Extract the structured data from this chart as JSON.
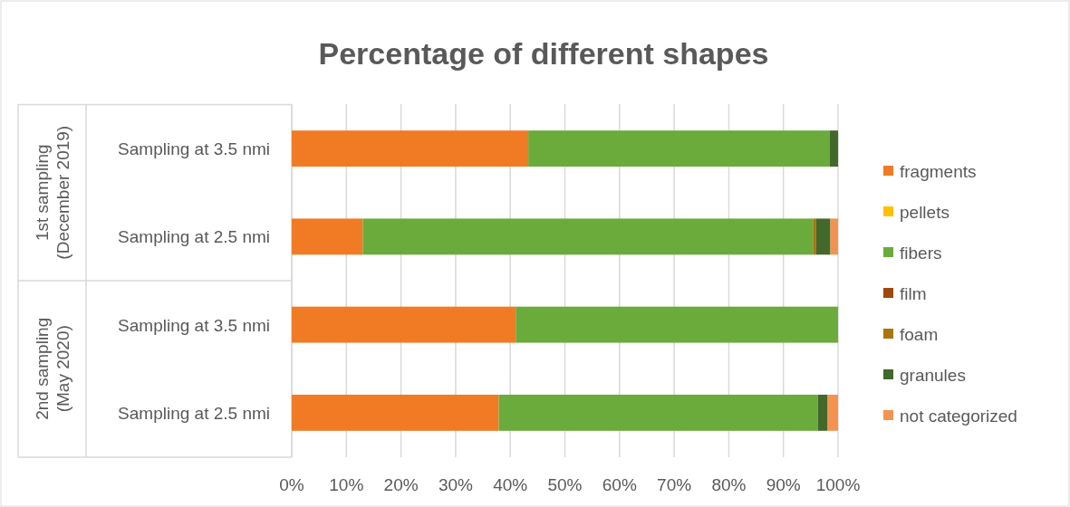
{
  "chart_data": {
    "type": "bar",
    "orientation": "horizontal",
    "stacked": true,
    "title": "Percentage of different shapes",
    "categories": [
      "Sampling at 3.5 nmi",
      "Sampling at 2.5 nmi",
      "Sampling at 3.5 nmi",
      "Sampling at 2.5 nmi"
    ],
    "annotations": [
      "1st sampling (December 2019)",
      "2nd sampling (May 2020)"
    ],
    "series": [
      {
        "name": "fragments",
        "color": "#f07b24",
        "values": [
          43.3,
          13.0,
          41.0,
          37.9
        ]
      },
      {
        "name": "pellets",
        "color": "#ffc000",
        "values": [
          0,
          0,
          0,
          0
        ]
      },
      {
        "name": "fibers",
        "color": "#6aab3c",
        "values": [
          55.2,
          82.4,
          59.0,
          58.4
        ]
      },
      {
        "name": "film",
        "color": "#9e480e",
        "values": [
          0,
          0,
          0,
          0
        ]
      },
      {
        "name": "foam",
        "color": "#a8760c",
        "values": [
          0,
          0.6,
          0,
          0
        ]
      },
      {
        "name": "granules",
        "color": "#43682b",
        "values": [
          1.5,
          2.6,
          0,
          1.8
        ]
      },
      {
        "name": "not categorized",
        "color": "#f4934f",
        "values": [
          0,
          1.4,
          0,
          1.9
        ]
      }
    ],
    "xlim": [
      0,
      100
    ],
    "xticks": [
      {
        "value": 0,
        "label": "0%"
      },
      {
        "value": 10,
        "label": "10%"
      },
      {
        "value": 20,
        "label": "20%"
      },
      {
        "value": 30,
        "label": "30%"
      },
      {
        "value": 40,
        "label": "40%"
      },
      {
        "value": 50,
        "label": "50%"
      },
      {
        "value": 60,
        "label": "60%"
      },
      {
        "value": 70,
        "label": "70%"
      },
      {
        "value": 80,
        "label": "80%"
      },
      {
        "value": 90,
        "label": "90%"
      },
      {
        "value": 100,
        "label": "100%"
      }
    ],
    "grid": "x",
    "legend": "right"
  }
}
